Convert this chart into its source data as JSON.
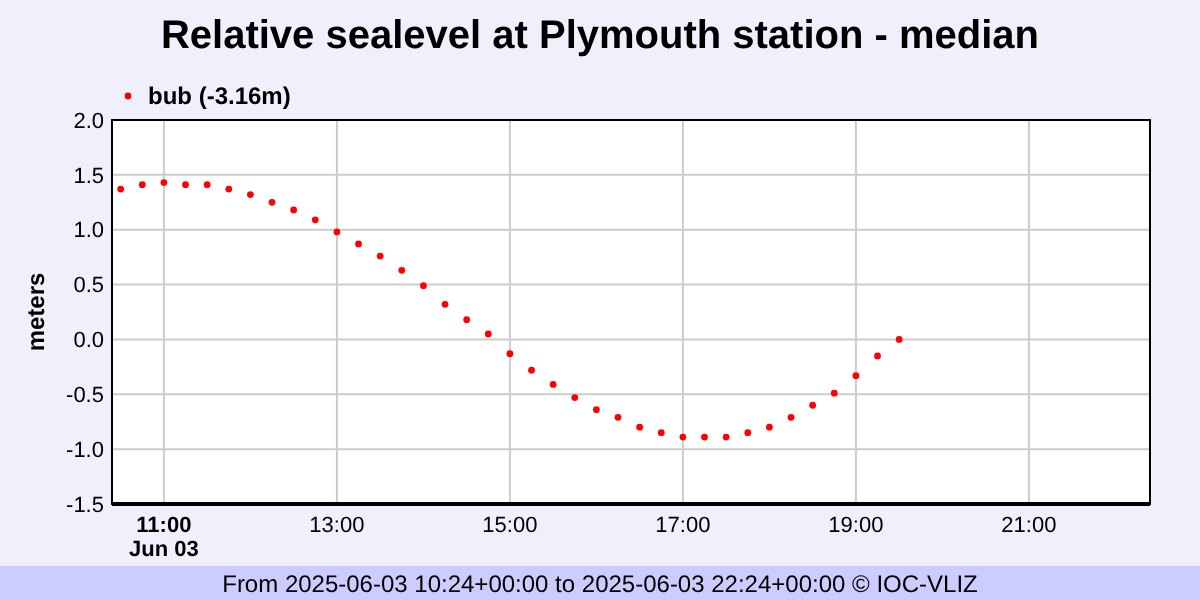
{
  "chart_data": {
    "type": "scatter",
    "title": "Relative sealevel at Plymouth station - median",
    "ylabel": "meters",
    "annotations": [
      "From 2025-06-03 10:24+00:00 to 2025-06-03 22:24+00:00 © IOC-VLIZ"
    ],
    "x": [
      10.5,
      10.75,
      11,
      11.25,
      11.5,
      11.75,
      12,
      12.25,
      12.5,
      12.75,
      13,
      13.25,
      13.5,
      13.75,
      14,
      14.25,
      14.5,
      14.75,
      15,
      15.25,
      15.5,
      15.75,
      16,
      16.25,
      16.5,
      16.75,
      17,
      17.25,
      17.5,
      17.75,
      18,
      18.25,
      18.5,
      18.75,
      19,
      19.25,
      19.5
    ],
    "series": [
      {
        "name": "bub (-3.16m)",
        "color": "#ff0000",
        "values": [
          1.37,
          1.41,
          1.43,
          1.41,
          1.41,
          1.37,
          1.32,
          1.25,
          1.18,
          1.09,
          0.98,
          0.87,
          0.76,
          0.63,
          0.49,
          0.32,
          0.18,
          0.05,
          -0.13,
          -0.28,
          -0.41,
          -0.53,
          -0.64,
          -0.71,
          -0.8,
          -0.85,
          -0.89,
          -0.89,
          -0.89,
          -0.85,
          -0.8,
          -0.71,
          -0.6,
          -0.49,
          -0.33,
          -0.15,
          0.0
        ]
      }
    ],
    "xlim": [
      10.4,
      22.4
    ],
    "xticks": [
      {
        "value": 11,
        "label": "11:00\nJun 03"
      },
      {
        "value": 13,
        "label": "13:00"
      },
      {
        "value": 15,
        "label": "15:00"
      },
      {
        "value": 17,
        "label": "17:00"
      },
      {
        "value": 19,
        "label": "19:00"
      },
      {
        "value": 21,
        "label": "21:00"
      }
    ],
    "ylim": [
      -1.5,
      2
    ],
    "yticks": [
      {
        "value": -1.5,
        "label": "-1.5"
      },
      {
        "value": -1,
        "label": "-1.0"
      },
      {
        "value": -0.5,
        "label": "-0.5"
      },
      {
        "value": 0,
        "label": "0.0"
      },
      {
        "value": 0.5,
        "label": "0.5"
      },
      {
        "value": 1,
        "label": "1.0"
      },
      {
        "value": 1.5,
        "label": "1.5"
      },
      {
        "value": 2,
        "label": "2.0"
      }
    ],
    "grid": true,
    "legend": "top left",
    "marker": "circle"
  }
}
